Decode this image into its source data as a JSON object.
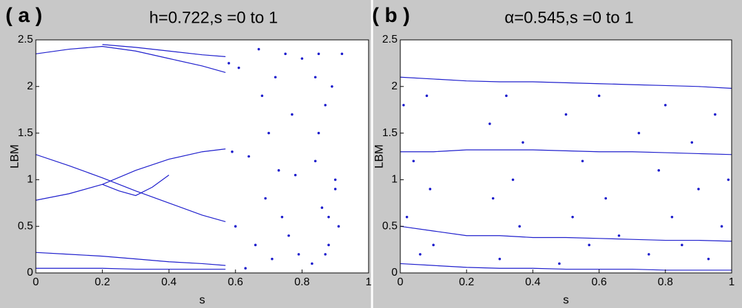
{
  "chart_data": [
    {
      "type": "line",
      "panel_label": "( a )",
      "title": "h=0.722,s =0 to 1",
      "xlabel": "s",
      "ylabel": "LBM",
      "xlim": [
        0,
        1
      ],
      "xticks": [
        0,
        0.2,
        0.4,
        0.6,
        0.8,
        1
      ],
      "ylim": [
        0,
        2.5
      ],
      "yticks": [
        0,
        0.5,
        1,
        1.5,
        2,
        2.5
      ],
      "series": [
        {
          "color": "#1a1acc",
          "x": [
            0,
            0.1,
            0.2,
            0.3,
            0.4,
            0.5,
            0.57
          ],
          "values": [
            2.35,
            2.4,
            2.43,
            2.38,
            2.3,
            2.22,
            2.15
          ]
        },
        {
          "color": "#1a1acc",
          "x": [
            0.2,
            0.3,
            0.4,
            0.5,
            0.57
          ],
          "values": [
            2.45,
            2.42,
            2.38,
            2.34,
            2.32
          ]
        },
        {
          "color": "#1a1acc",
          "x": [
            0,
            0.1,
            0.2,
            0.3,
            0.4,
            0.5,
            0.57
          ],
          "values": [
            1.27,
            1.15,
            1.02,
            0.88,
            0.75,
            0.62,
            0.55
          ]
        },
        {
          "color": "#1a1acc",
          "x": [
            0,
            0.1,
            0.2,
            0.3,
            0.4,
            0.5,
            0.57
          ],
          "values": [
            0.78,
            0.85,
            0.95,
            1.1,
            1.22,
            1.3,
            1.33
          ]
        },
        {
          "color": "#1a1acc",
          "x": [
            0.2,
            0.25,
            0.3,
            0.35,
            0.4
          ],
          "values": [
            0.95,
            0.88,
            0.83,
            0.92,
            1.05
          ]
        },
        {
          "color": "#1a1acc",
          "x": [
            0,
            0.1,
            0.2,
            0.3,
            0.4,
            0.5,
            0.57
          ],
          "values": [
            0.22,
            0.2,
            0.18,
            0.15,
            0.12,
            0.1,
            0.08
          ]
        },
        {
          "color": "#1a1acc",
          "x": [
            0,
            0.1,
            0.2,
            0.3,
            0.4,
            0.5,
            0.57
          ],
          "values": [
            0.05,
            0.05,
            0.05,
            0.04,
            0.04,
            0.04,
            0.04
          ]
        },
        {
          "type": "scatter",
          "color": "#1a1acc",
          "x": [
            0.58,
            0.59,
            0.6,
            0.61,
            0.63,
            0.64,
            0.66,
            0.67,
            0.68,
            0.69,
            0.7,
            0.71,
            0.72,
            0.73,
            0.74,
            0.75,
            0.76,
            0.77,
            0.78,
            0.79,
            0.8,
            0.83,
            0.84,
            0.85,
            0.86,
            0.87,
            0.88,
            0.89,
            0.9,
            0.91,
            0.92,
            0.85,
            0.87,
            0.9,
            0.84,
            0.88
          ],
          "values": [
            2.25,
            1.3,
            0.5,
            2.2,
            0.05,
            1.25,
            0.3,
            2.4,
            1.9,
            0.8,
            1.5,
            0.15,
            2.1,
            1.1,
            0.6,
            2.35,
            0.4,
            1.7,
            1.05,
            0.2,
            2.3,
            0.1,
            1.2,
            2.35,
            0.7,
            1.8,
            0.3,
            2.0,
            1.0,
            0.5,
            2.35,
            1.5,
            0.2,
            0.9,
            2.1,
            0.6
          ]
        }
      ]
    },
    {
      "type": "line",
      "panel_label": "( b )",
      "title": "α=0.545,s =0 to 1",
      "xlabel": "s",
      "ylabel": "LBM",
      "xlim": [
        0,
        1
      ],
      "xticks": [
        0,
        0.2,
        0.4,
        0.6,
        0.8,
        1
      ],
      "ylim": [
        0,
        2.5
      ],
      "yticks": [
        0,
        0.5,
        1,
        1.5,
        2,
        2.5
      ],
      "series": [
        {
          "color": "#1a1acc",
          "x": [
            0,
            0.1,
            0.2,
            0.3,
            0.4,
            0.5,
            0.6,
            0.7,
            0.8,
            0.9,
            1
          ],
          "values": [
            2.1,
            2.08,
            2.06,
            2.05,
            2.05,
            2.04,
            2.03,
            2.02,
            2.01,
            2.0,
            1.98
          ]
        },
        {
          "color": "#1a1acc",
          "x": [
            0,
            0.1,
            0.2,
            0.3,
            0.4,
            0.5,
            0.6,
            0.7,
            0.8,
            0.9,
            1
          ],
          "values": [
            1.3,
            1.3,
            1.32,
            1.32,
            1.32,
            1.31,
            1.3,
            1.3,
            1.29,
            1.28,
            1.27
          ]
        },
        {
          "color": "#1a1acc",
          "x": [
            0,
            0.1,
            0.2,
            0.3,
            0.4,
            0.5,
            0.6,
            0.7,
            0.8,
            0.9,
            1
          ],
          "values": [
            0.5,
            0.45,
            0.4,
            0.4,
            0.38,
            0.38,
            0.37,
            0.36,
            0.35,
            0.35,
            0.34
          ]
        },
        {
          "color": "#1a1acc",
          "x": [
            0,
            0.1,
            0.2,
            0.3,
            0.4,
            0.5,
            0.6,
            0.7,
            0.8,
            0.9,
            1
          ],
          "values": [
            0.1,
            0.08,
            0.06,
            0.05,
            0.05,
            0.04,
            0.04,
            0.04,
            0.03,
            0.03,
            0.03
          ]
        },
        {
          "type": "scatter",
          "color": "#1a1acc",
          "x": [
            0.01,
            0.02,
            0.04,
            0.06,
            0.08,
            0.09,
            0.1,
            0.27,
            0.28,
            0.3,
            0.32,
            0.34,
            0.36,
            0.37,
            0.48,
            0.5,
            0.52,
            0.55,
            0.57,
            0.6,
            0.62,
            0.66,
            0.72,
            0.75,
            0.78,
            0.8,
            0.82,
            0.85,
            0.88,
            0.9,
            0.93,
            0.95,
            0.97,
            0.99
          ],
          "values": [
            1.8,
            0.6,
            1.2,
            0.2,
            1.9,
            0.9,
            0.3,
            1.6,
            0.8,
            0.15,
            1.9,
            1.0,
            0.5,
            1.4,
            0.1,
            1.7,
            0.6,
            1.2,
            0.3,
            1.9,
            0.8,
            0.4,
            1.5,
            0.2,
            1.1,
            1.8,
            0.6,
            0.3,
            1.4,
            0.9,
            0.15,
            1.7,
            0.5,
            1.0
          ]
        }
      ]
    }
  ]
}
